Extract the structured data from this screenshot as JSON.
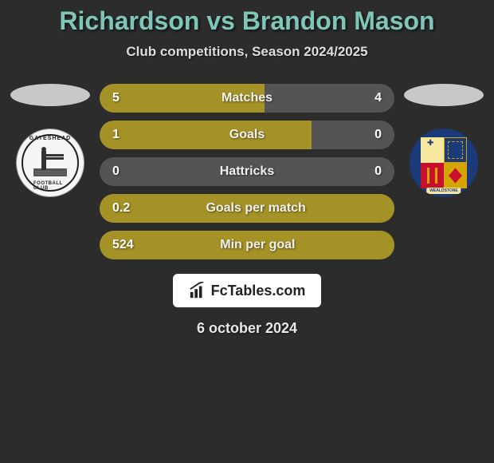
{
  "title": "Richardson vs Brandon Mason",
  "title_color": "#7fc6b8",
  "subtitle": "Club competitions, Season 2024/2025",
  "background": "#2c2c2c",
  "ellipse_left_color": "#c8c8c8",
  "ellipse_right_color": "#c8c8c8",
  "footer_brand": "FcTables.com",
  "date": "6 october 2024",
  "bars": [
    {
      "left": "5",
      "label": "Matches",
      "right": "4",
      "fill_pct": 56,
      "fill_color": "#a59226",
      "bg_color": "#545454"
    },
    {
      "left": "1",
      "label": "Goals",
      "right": "0",
      "fill_pct": 72,
      "fill_color": "#a59226",
      "bg_color": "#545454"
    },
    {
      "left": "0",
      "label": "Hattricks",
      "right": "0",
      "fill_pct": 100,
      "fill_color": "#545454",
      "bg_color": "#545454"
    },
    {
      "left": "0.2",
      "label": "Goals per match",
      "right": "",
      "fill_pct": 100,
      "fill_color": "#a59226",
      "bg_color": "#a59226"
    },
    {
      "left": "524",
      "label": "Min per goal",
      "right": "",
      "fill_pct": 100,
      "fill_color": "#a59226",
      "bg_color": "#a59226"
    }
  ],
  "bar_style": {
    "height": 36,
    "radius": 18,
    "font_size": 16,
    "font_weight": 800,
    "label_color": "#f0f0f0",
    "value_color": "#ffffff"
  },
  "club_left": {
    "name": "Gateshead",
    "badge_bg": "#f5f5f5",
    "text_top": "GATESHEAD",
    "text_bottom": "FOOTBALL CLUB"
  },
  "club_right": {
    "name": "Wealdstone",
    "badge_bg": "#1a3a7a",
    "shield_colors": {
      "q1": "#f5e6a0",
      "q2": "#1a3a7a",
      "q3": "#c8102e",
      "q4": "#d4a500"
    },
    "banner": "WEALDSTONE"
  }
}
